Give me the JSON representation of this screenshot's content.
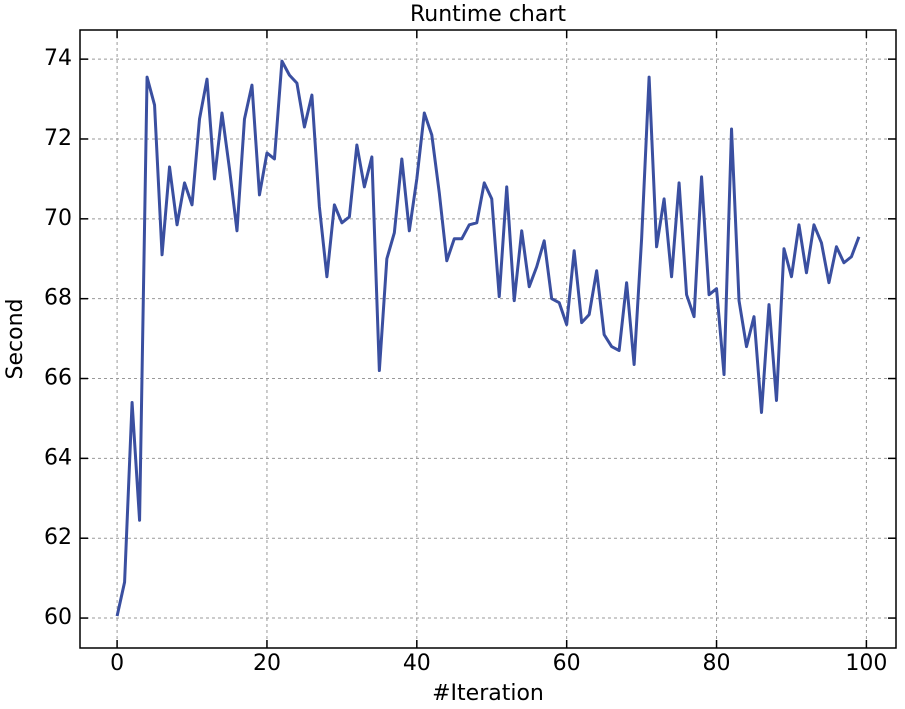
{
  "chart_data": {
    "type": "line",
    "title": "Runtime chart",
    "x_label": "#Iteration",
    "y_label": "Second",
    "x": [
      0,
      1,
      2,
      3,
      4,
      5,
      6,
      7,
      8,
      9,
      10,
      11,
      12,
      13,
      14,
      15,
      16,
      17,
      18,
      19,
      20,
      21,
      22,
      23,
      24,
      25,
      26,
      27,
      28,
      29,
      30,
      31,
      32,
      33,
      34,
      35,
      36,
      37,
      38,
      39,
      40,
      41,
      42,
      43,
      44,
      45,
      46,
      47,
      48,
      49,
      50,
      51,
      52,
      53,
      54,
      55,
      56,
      57,
      58,
      59,
      60,
      61,
      62,
      63,
      64,
      65,
      66,
      67,
      68,
      69,
      70,
      71,
      72,
      73,
      74,
      75,
      76,
      77,
      78,
      79,
      80,
      81,
      82,
      83,
      84,
      85,
      86,
      87,
      88,
      89,
      90,
      91,
      92,
      93,
      94,
      95,
      96,
      97,
      98,
      99
    ],
    "series": [
      {
        "color": "#3a4fa0",
        "values": [
          60.05,
          60.9,
          65.4,
          62.45,
          73.55,
          72.85,
          69.1,
          71.3,
          69.85,
          70.9,
          70.35,
          72.5,
          73.5,
          71.0,
          72.65,
          71.25,
          69.7,
          72.5,
          73.35,
          70.6,
          71.65,
          71.5,
          73.95,
          73.6,
          73.4,
          72.3,
          73.1,
          70.3,
          68.55,
          70.35,
          69.9,
          70.05,
          71.85,
          70.8,
          71.55,
          66.2,
          69.0,
          69.65,
          71.5,
          69.7,
          71.0,
          72.65,
          72.1,
          70.65,
          68.95,
          69.5,
          69.5,
          69.85,
          69.9,
          70.9,
          70.5,
          68.05,
          70.8,
          67.95,
          69.7,
          68.3,
          68.8,
          69.45,
          68.0,
          67.9,
          67.35,
          69.2,
          67.4,
          67.6,
          68.7,
          67.1,
          66.8,
          66.7,
          68.4,
          66.35,
          69.5,
          73.55,
          69.3,
          70.5,
          68.55,
          70.9,
          68.1,
          67.55,
          71.05,
          68.1,
          68.25,
          66.1,
          72.25,
          67.95,
          66.8,
          67.55,
          65.15,
          67.85,
          65.45,
          69.25,
          68.55,
          69.85,
          68.65,
          69.85,
          69.4,
          68.4,
          69.3,
          68.9,
          69.05,
          69.55
        ]
      }
    ],
    "xlim": [
      -4.95,
      103.95
    ],
    "ylim": [
      59.25,
      74.73
    ],
    "xticks": [
      0,
      20,
      40,
      60,
      80,
      100
    ],
    "yticks": [
      60,
      62,
      64,
      66,
      68,
      70,
      72,
      74
    ],
    "grid": true
  }
}
